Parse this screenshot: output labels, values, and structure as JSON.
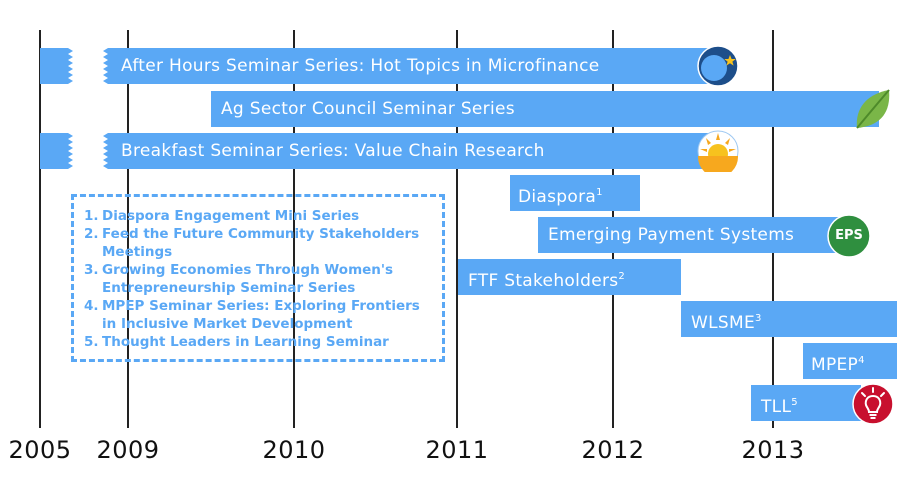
{
  "years": [
    "2005",
    "2009",
    "2010",
    "2011",
    "2012",
    "2013"
  ],
  "bars": {
    "after_hours": "After Hours Seminar Series: Hot Topics in Microfinance",
    "ag_sector": "Ag Sector Council Seminar Series",
    "breakfast": "Breakfast Seminar Series: Value Chain Research",
    "diaspora": "Diaspora",
    "diaspora_sup": "1",
    "eps": "Emerging Payment Systems",
    "ftf": "FTF Stakeholders",
    "ftf_sup": "2",
    "wlsme": "WLSME",
    "wlsme_sup": "3",
    "mpep": "MPEP",
    "mpep_sup": "4",
    "tll": "TLL",
    "tll_sup": "5"
  },
  "icons": {
    "eps_badge": "EPS",
    "names": [
      "globe-star-icon",
      "leaf-icon",
      "sunrise-icon",
      "eps-badge-icon",
      "lightbulb-icon"
    ]
  },
  "notes": [
    {
      "num": "1.",
      "text": "Diaspora Engagement Mini Series"
    },
    {
      "num": "2.",
      "text": "Feed the Future Community Stakeholders Meetings"
    },
    {
      "num": "3.",
      "text": "Growing Economies Through Women's Entrepreneurship Seminar Series"
    },
    {
      "num": "4.",
      "text": "MPEP Seminar Series: Exploring Frontiers in Inclusive Market Development"
    },
    {
      "num": "5.",
      "text": "Thought Leaders in Learning Seminar"
    }
  ],
  "colors": {
    "bar": "#5aa8f5",
    "line": "#222222",
    "notes": "#5aa8f5"
  }
}
